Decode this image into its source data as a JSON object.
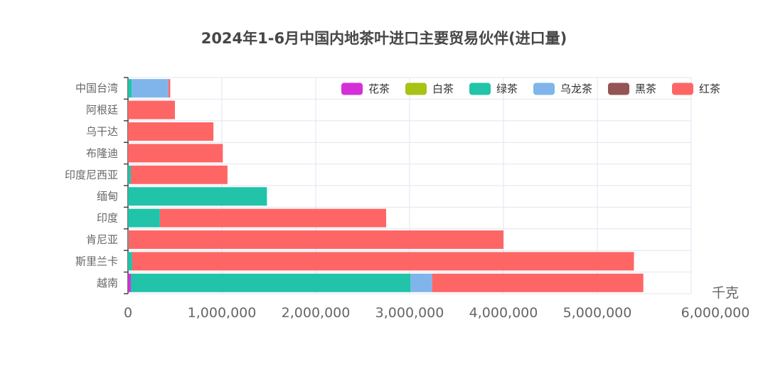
{
  "title": "2024年1-6月中国内地茶叶进口主要贸易伙伴(进口量)",
  "chart_data": {
    "type": "bar",
    "orientation": "horizontal",
    "stacked": true,
    "title": "2024年1-6月中国内地茶叶进口主要贸易伙伴(进口量)",
    "xlabel": "千克",
    "ylabel": "",
    "xlim": [
      0,
      6000000
    ],
    "x_ticks": [
      "0",
      "1,000,000",
      "2,000,000",
      "3,000,000",
      "4,000,000",
      "5,000,000",
      "6,000,000"
    ],
    "grid": true,
    "legend_position": "top-right",
    "categories": [
      "越南",
      "斯里兰卡",
      "肯尼亚",
      "印度",
      "缅甸",
      "印度尼西亚",
      "布隆迪",
      "乌干达",
      "阿根廷",
      "中国台湾"
    ],
    "series": [
      {
        "name": "花茶",
        "color": "#d52fd8",
        "values": [
          30000,
          0,
          0,
          0,
          0,
          0,
          0,
          0,
          0,
          0
        ]
      },
      {
        "name": "白茶",
        "color": "#a8c215",
        "values": [
          0,
          0,
          0,
          0,
          0,
          0,
          0,
          0,
          0,
          0
        ]
      },
      {
        "name": "绿茶",
        "color": "#21c3a9",
        "values": [
          2980000,
          45000,
          5000,
          340000,
          1480000,
          30000,
          0,
          0,
          0,
          40000
        ]
      },
      {
        "name": "乌龙茶",
        "color": "#7fb5ea",
        "values": [
          230000,
          0,
          0,
          0,
          0,
          0,
          0,
          0,
          0,
          390000
        ]
      },
      {
        "name": "黑茶",
        "color": "#945454",
        "values": [
          0,
          0,
          0,
          0,
          0,
          0,
          0,
          0,
          0,
          0
        ]
      },
      {
        "name": "红茶",
        "color": "#fe6666",
        "values": [
          2250000,
          5345000,
          3995000,
          2410000,
          0,
          1030000,
          1010000,
          910000,
          500000,
          20000
        ]
      }
    ]
  }
}
